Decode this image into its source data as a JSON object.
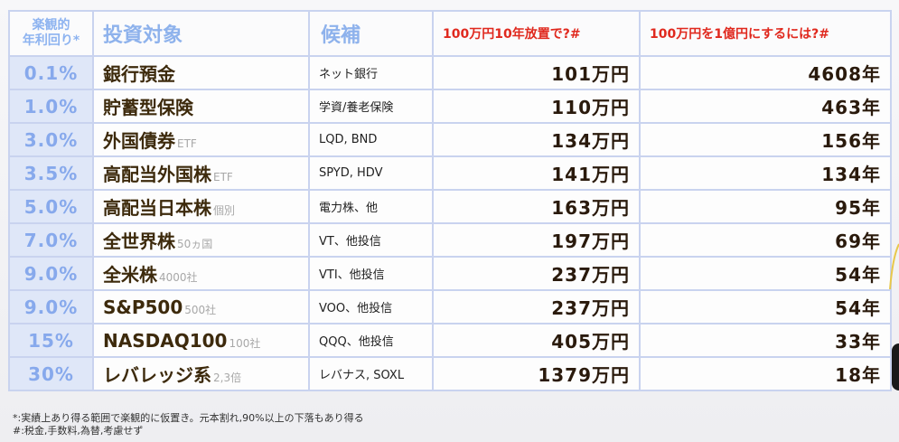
{
  "header": {
    "rate_line1": "楽観的",
    "rate_line2": "年利回り*",
    "target": "投資対象",
    "candidates": "候補",
    "ten_years": "100万円10年放置で?#",
    "to_oku": "100万円を1億円にするには?#"
  },
  "rows": [
    {
      "rate": "0.1%",
      "target": "銀行預金",
      "note": "",
      "candidates": "ネット銀行",
      "after10": "101万円",
      "years": "4608年"
    },
    {
      "rate": "1.0%",
      "target": "貯蓄型保険",
      "note": "",
      "candidates": "学資/養老保険",
      "after10": "110万円",
      "years": "463年"
    },
    {
      "rate": "3.0%",
      "target": "外国債券",
      "note": "ETF",
      "candidates": "LQD, BND",
      "after10": "134万円",
      "years": "156年"
    },
    {
      "rate": "3.5%",
      "target": "高配当外国株",
      "note": "ETF",
      "candidates": "SPYD, HDV",
      "after10": "141万円",
      "years": "134年"
    },
    {
      "rate": "5.0%",
      "target": "高配当日本株",
      "note": "個別",
      "candidates": "電力株、他",
      "after10": "163万円",
      "years": "95年"
    },
    {
      "rate": "7.0%",
      "target": "全世界株",
      "note": "50ヵ国",
      "candidates": "VT、他投信",
      "after10": "197万円",
      "years": "69年"
    },
    {
      "rate": "9.0%",
      "target": "全米株",
      "note": "4000社",
      "candidates": "VTI、他投信",
      "after10": "237万円",
      "years": "54年"
    },
    {
      "rate": "9.0%",
      "target": "S&P500",
      "note": "500社",
      "candidates": "VOO、他投信",
      "after10": "237万円",
      "years": "54年"
    },
    {
      "rate": "15%",
      "target": "NASDAQ100",
      "note": "100社",
      "candidates": "QQQ、他投信",
      "after10": "405万円",
      "years": "33年"
    },
    {
      "rate": "30%",
      "target": "レバレッジ系",
      "note": "2,3倍",
      "candidates": "レバナス, SOXL",
      "after10": "1379万円",
      "years": "18年"
    }
  ],
  "notes": {
    "note1": "*:実績上あり得る範囲で楽観的に仮置き。元本割れ,90%以上の下落もあり得る",
    "note2": "#:税金,手数料,為替,考慮せず"
  },
  "colors": {
    "border": "#c9d3ef",
    "rate_bg": "#dfe7f8",
    "rate_text": "#87a9ec",
    "header_red": "#e0291e",
    "body_text": "#2a1a0c"
  }
}
